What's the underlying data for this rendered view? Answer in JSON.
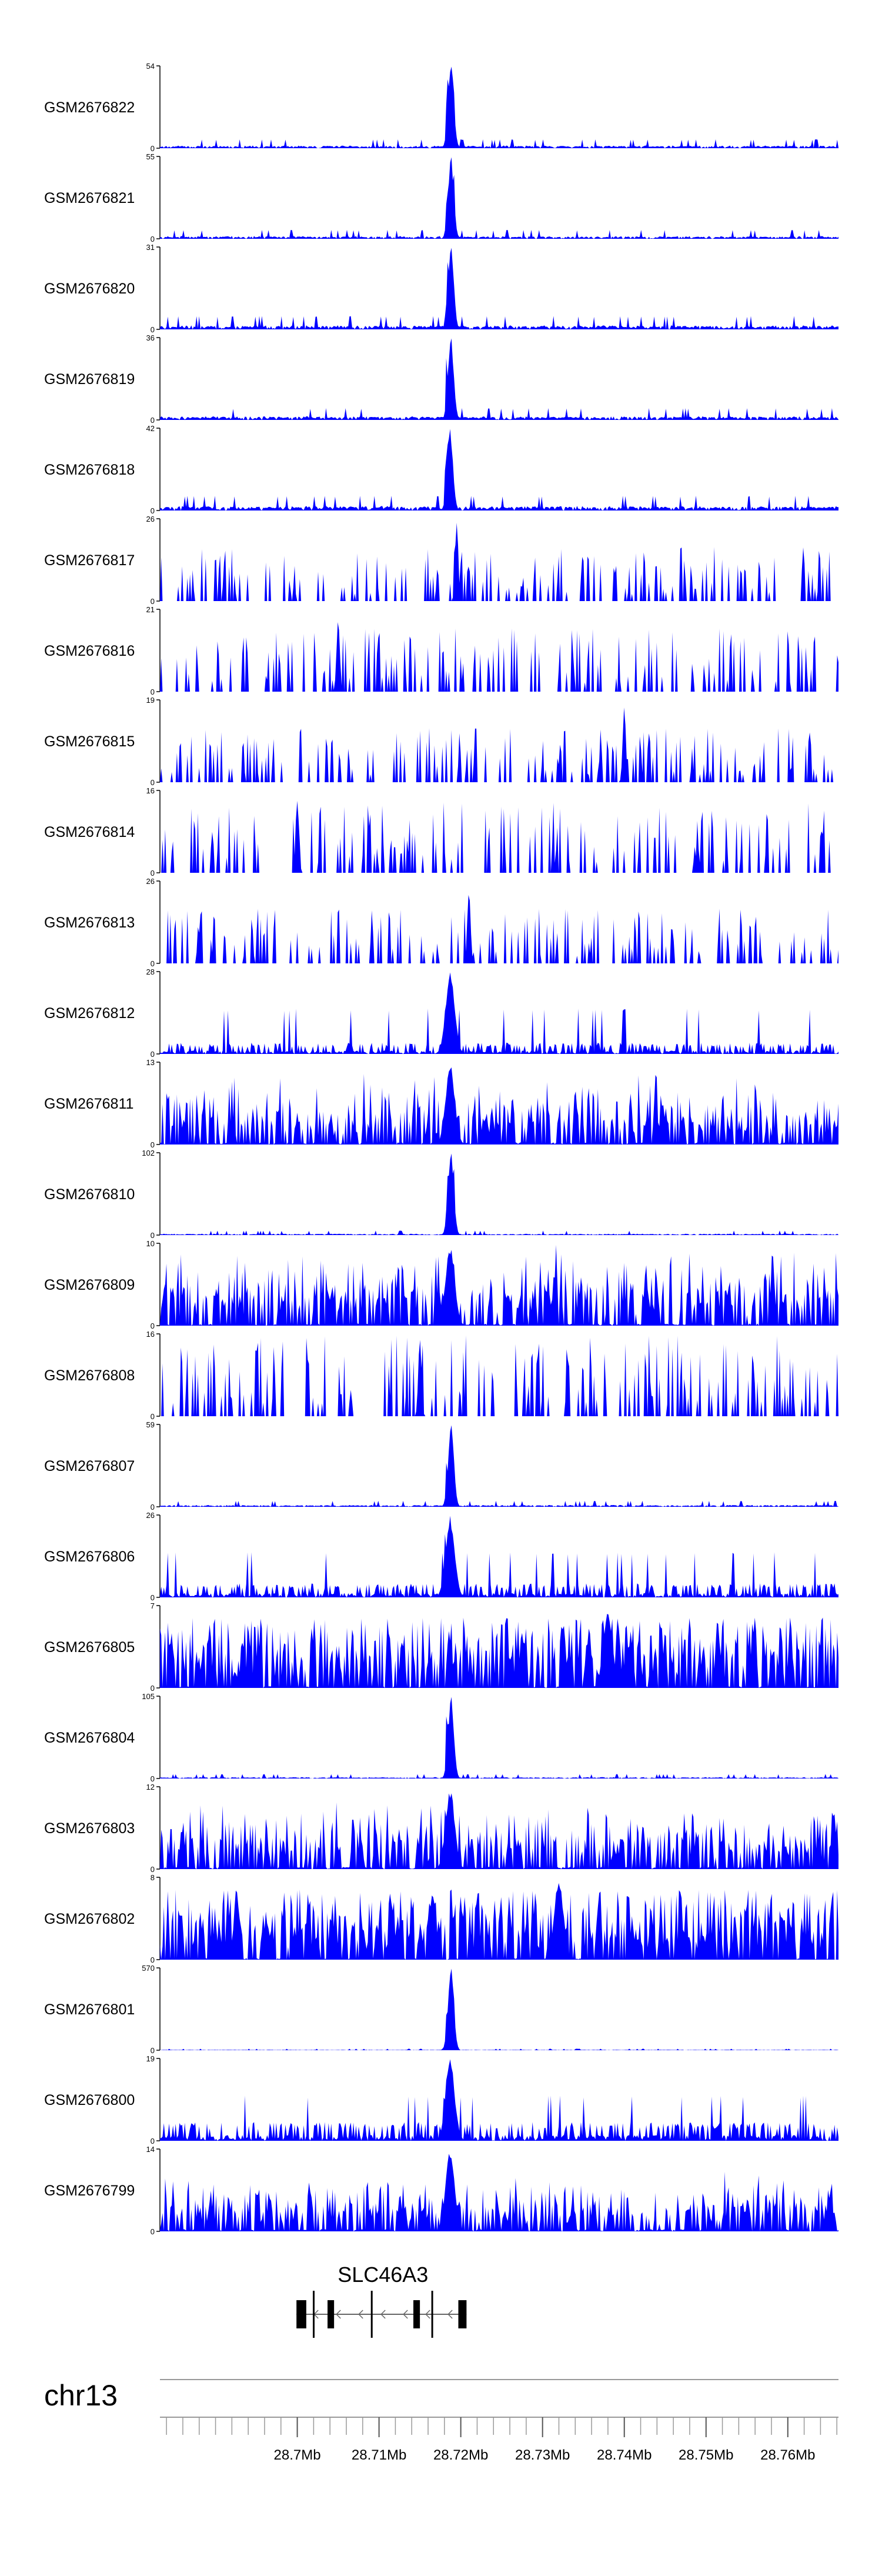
{
  "chart_data": {
    "type": "area",
    "genome_browser": true,
    "chromosome": "chr13",
    "x_unit": "Mb",
    "xlim": [
      28.6832,
      28.7662
    ],
    "fill_color": "#0000ff",
    "axis_color": "#000000",
    "tracks": [
      {
        "name": "GSM2676822",
        "ymax": 54,
        "ymin": 0,
        "peak_mb": 28.7188,
        "profile": "sharp",
        "baseline": 0.06,
        "seed": 11
      },
      {
        "name": "GSM2676821",
        "ymax": 55,
        "ymin": 0,
        "peak_mb": 28.7188,
        "profile": "sharp",
        "baseline": 0.06,
        "seed": 12
      },
      {
        "name": "GSM2676820",
        "ymax": 31,
        "ymin": 0,
        "peak_mb": 28.7188,
        "profile": "sharp",
        "baseline": 0.09,
        "seed": 13
      },
      {
        "name": "GSM2676819",
        "ymax": 36,
        "ymin": 0,
        "peak_mb": 28.7188,
        "profile": "sharp",
        "baseline": 0.08,
        "seed": 14
      },
      {
        "name": "GSM2676818",
        "ymax": 42,
        "ymin": 0,
        "peak_mb": 28.7187,
        "profile": "sharp",
        "baseline": 0.1,
        "seed": 15
      },
      {
        "name": "GSM2676817",
        "ymax": 26,
        "ymin": 0,
        "peak_mb": 28.7195,
        "profile": "sparse",
        "baseline": 0.3,
        "seed": 16
      },
      {
        "name": "GSM2676816",
        "ymax": 21,
        "ymin": 0,
        "peak_mb": 28.705,
        "profile": "sparse",
        "baseline": 0.35,
        "seed": 17
      },
      {
        "name": "GSM2676815",
        "ymax": 19,
        "ymin": 0,
        "peak_mb": 28.74,
        "profile": "sparse",
        "baseline": 0.3,
        "seed": 18
      },
      {
        "name": "GSM2676814",
        "ymax": 16,
        "ymin": 0,
        "peak_mb": 28.7,
        "profile": "sparse",
        "baseline": 0.4,
        "seed": 19
      },
      {
        "name": "GSM2676813",
        "ymax": 26,
        "ymin": 0,
        "peak_mb": 28.721,
        "profile": "sparse",
        "baseline": 0.3,
        "seed": 20
      },
      {
        "name": "GSM2676812",
        "ymax": 28,
        "ymin": 0,
        "peak_mb": 28.7187,
        "profile": "medium",
        "baseline": 0.12,
        "seed": 21
      },
      {
        "name": "GSM2676811",
        "ymax": 13,
        "ymin": 0,
        "peak_mb": 28.7187,
        "profile": "broad",
        "baseline": 0.35,
        "seed": 22
      },
      {
        "name": "GSM2676810",
        "ymax": 102,
        "ymin": 0,
        "peak_mb": 28.7188,
        "profile": "sharp",
        "baseline": 0.03,
        "seed": 23
      },
      {
        "name": "GSM2676809",
        "ymax": 10,
        "ymin": 0,
        "peak_mb": 28.7187,
        "profile": "broad",
        "baseline": 0.4,
        "seed": 24
      },
      {
        "name": "GSM2676808",
        "ymax": 16,
        "ymin": 0,
        "peak_mb": 28.715,
        "profile": "sparse",
        "baseline": 0.45,
        "seed": 25
      },
      {
        "name": "GSM2676807",
        "ymax": 59,
        "ymin": 0,
        "peak_mb": 28.7188,
        "profile": "sharp",
        "baseline": 0.04,
        "seed": 26
      },
      {
        "name": "GSM2676806",
        "ymax": 26,
        "ymin": 0,
        "peak_mb": 28.7187,
        "profile": "medium",
        "baseline": 0.15,
        "seed": 27
      },
      {
        "name": "GSM2676805",
        "ymax": 7,
        "ymin": 0,
        "peak_mb": 28.738,
        "profile": "dense",
        "baseline": 0.45,
        "seed": 28
      },
      {
        "name": "GSM2676804",
        "ymax": 105,
        "ymin": 0,
        "peak_mb": 28.7188,
        "profile": "sharp",
        "baseline": 0.03,
        "seed": 29
      },
      {
        "name": "GSM2676803",
        "ymax": 12,
        "ymin": 0,
        "peak_mb": 28.7187,
        "profile": "broad",
        "baseline": 0.35,
        "seed": 30
      },
      {
        "name": "GSM2676802",
        "ymax": 8,
        "ymin": 0,
        "peak_mb": 28.732,
        "profile": "dense",
        "baseline": 0.45,
        "seed": 31
      },
      {
        "name": "GSM2676801",
        "ymax": 570,
        "ymin": 0,
        "peak_mb": 28.7188,
        "profile": "sharp",
        "baseline": 0.01,
        "seed": 32
      },
      {
        "name": "GSM2676800",
        "ymax": 19,
        "ymin": 0,
        "peak_mb": 28.7187,
        "profile": "medium",
        "baseline": 0.2,
        "seed": 33
      },
      {
        "name": "GSM2676799",
        "ymax": 14,
        "ymin": 0,
        "peak_mb": 28.7187,
        "profile": "broad",
        "baseline": 0.3,
        "seed": 34
      }
    ],
    "gene": {
      "name": "SLC46A3",
      "strand": "-",
      "start_mb": 28.6999,
      "end_mb": 28.7207,
      "exons_mb": [
        [
          28.6999,
          28.7011
        ],
        [
          28.7019,
          28.7021
        ],
        [
          28.7037,
          28.7045
        ],
        [
          28.709,
          28.7092
        ],
        [
          28.7142,
          28.715
        ],
        [
          28.7164,
          28.7166
        ],
        [
          28.7197,
          28.7207
        ]
      ],
      "thick_exons": [
        0,
        2,
        4,
        6
      ]
    },
    "x_ticks": [
      {
        "value": 28.7,
        "label": "28.7Mb"
      },
      {
        "value": 28.71,
        "label": "28.71Mb"
      },
      {
        "value": 28.72,
        "label": "28.72Mb"
      },
      {
        "value": 28.73,
        "label": "28.73Mb"
      },
      {
        "value": 28.74,
        "label": "28.74Mb"
      },
      {
        "value": 28.75,
        "label": "28.75Mb"
      },
      {
        "value": 28.76,
        "label": "28.76Mb"
      }
    ],
    "minor_tick_step_mb": 0.002
  }
}
